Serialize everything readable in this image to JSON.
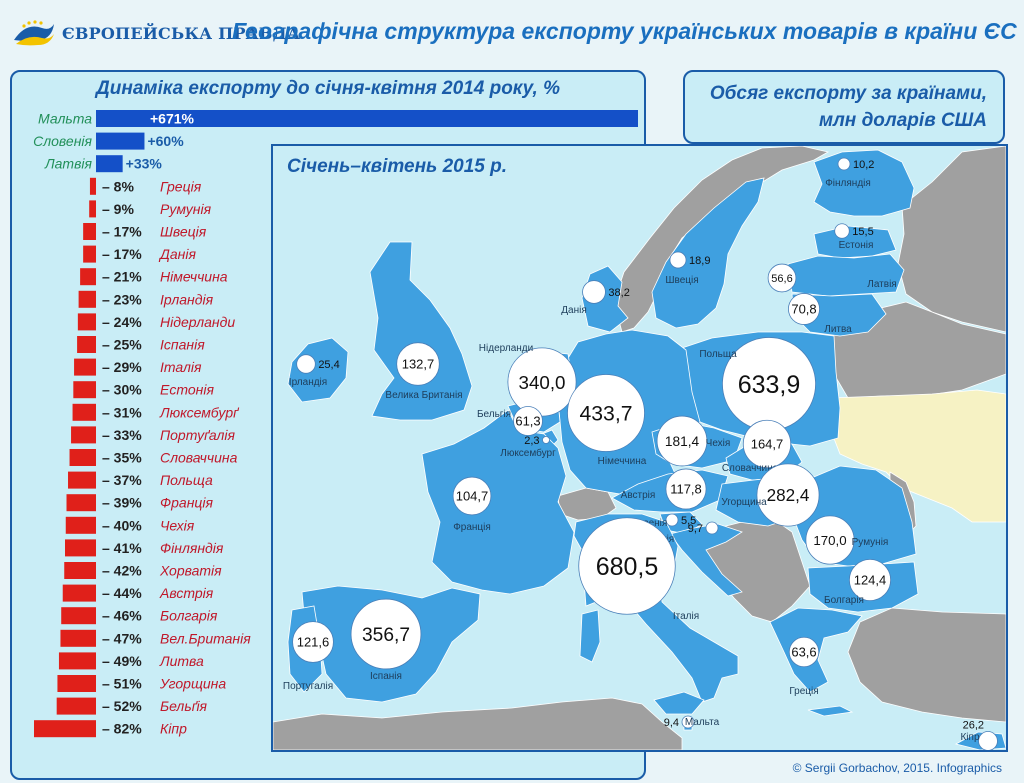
{
  "header": {
    "logo_text": "ЄВРОПЕЙСЬКА ПРАВДА",
    "title": "Географічна структура експорту українських товарів в країни ЄС"
  },
  "colors": {
    "positive": "#1450c8",
    "negative": "#e0201a",
    "map_eu": "#3fa0e0",
    "map_ukraine": "#f6f2c4",
    "map_other": "#a0a0a0",
    "panel_bg": "#c9edf6",
    "accent": "#1a5ca8"
  },
  "chart_data": [
    {
      "type": "bar",
      "orientation": "horizontal",
      "title": "Динаміка експорту до січня-квітня 2014 року, %",
      "categories": [
        "Мальта",
        "Словенія",
        "Латвія",
        "Греція",
        "Румунія",
        "Швеція",
        "Данія",
        "Німеччина",
        "Ірландія",
        "Нідерланди",
        "Іспанія",
        "Італія",
        "Естонія",
        "Люксембурґ",
        "Портуґалія",
        "Словаччина",
        "Польща",
        "Франція",
        "Чехія",
        "Фінляндія",
        "Хорватія",
        "Австрія",
        "Болгарія",
        "Вел.Британія",
        "Литва",
        "Угорщина",
        "Бельґія",
        "Кіпр"
      ],
      "values": [
        671,
        60,
        33,
        -8,
        -9,
        -17,
        -17,
        -21,
        -23,
        -24,
        -25,
        -29,
        -30,
        -31,
        -33,
        -35,
        -37,
        -39,
        -40,
        -41,
        -42,
        -44,
        -46,
        -47,
        -49,
        -51,
        -52,
        -82
      ],
      "labels": [
        "+671%",
        "+60%",
        "+33%",
        "– 8%",
        "– 9%",
        "– 17%",
        "– 17%",
        "– 21%",
        "– 23%",
        "– 24%",
        "– 25%",
        "– 29%",
        "– 30%",
        "– 31%",
        "– 33%",
        "– 35%",
        "– 37%",
        "– 39%",
        "– 40%",
        "– 41%",
        "– 42%",
        "– 44%",
        "– 46%",
        "– 47%",
        "– 49%",
        "– 51%",
        "– 52%",
        "– 82%"
      ]
    },
    {
      "type": "bubble-map",
      "title": "Обсяг експорту за країнами, млн доларів США",
      "subtitle": "Січень–квітень 2015 р.",
      "points": [
        {
          "country": "Фінляндія",
          "value": 10.2,
          "label": "10,2"
        },
        {
          "country": "Естонія",
          "value": 15.5,
          "label": "15,5"
        },
        {
          "country": "Латвія",
          "value": 56.6,
          "label": "56,6"
        },
        {
          "country": "Литва",
          "value": 70.8,
          "label": "70,8"
        },
        {
          "country": "Швеція",
          "value": 18.9,
          "label": "18,9"
        },
        {
          "country": "Данія",
          "value": 38.2,
          "label": "38,2"
        },
        {
          "country": "Ірландія",
          "value": 25.4,
          "label": "25,4"
        },
        {
          "country": "Велика Британія",
          "value": 132.7,
          "label": "132,7"
        },
        {
          "country": "Нідерланди",
          "value": 340.0,
          "label": "340,0"
        },
        {
          "country": "Бельгія",
          "value": 61.3,
          "label": "61,3"
        },
        {
          "country": "Люксембург",
          "value": 2.3,
          "label": "2,3"
        },
        {
          "country": "Німеччина",
          "value": 433.7,
          "label": "433,7"
        },
        {
          "country": "Польща",
          "value": 633.9,
          "label": "633,9"
        },
        {
          "country": "Чехія",
          "value": 181.4,
          "label": "181,4"
        },
        {
          "country": "Словаччина",
          "value": 164.7,
          "label": "164,7"
        },
        {
          "country": "Австрія",
          "value": 117.8,
          "label": "117,8"
        },
        {
          "country": "Угорщина",
          "value": 282.4,
          "label": "282,4"
        },
        {
          "country": "Словенія",
          "value": 5.5,
          "label": "5,5"
        },
        {
          "country": "Хорватія",
          "value": 9.7,
          "label": "9,7"
        },
        {
          "country": "Франція",
          "value": 104.7,
          "label": "104,7"
        },
        {
          "country": "Румунія",
          "value": 170.0,
          "label": "170,0"
        },
        {
          "country": "Болгарія",
          "value": 124.4,
          "label": "124,4"
        },
        {
          "country": "Італія",
          "value": 680.5,
          "label": "680,5"
        },
        {
          "country": "Португалія",
          "value": 121.6,
          "label": "121,6"
        },
        {
          "country": "Іспанія",
          "value": 356.7,
          "label": "356,7"
        },
        {
          "country": "Греція",
          "value": 63.6,
          "label": "63,6"
        },
        {
          "country": "Мальта",
          "value": 9.4,
          "label": "9,4"
        },
        {
          "country": "Кіпр",
          "value": 26.2,
          "label": "26,2"
        }
      ]
    }
  ],
  "credit": "© Sergii Gorbachov, 2015. Infographics"
}
